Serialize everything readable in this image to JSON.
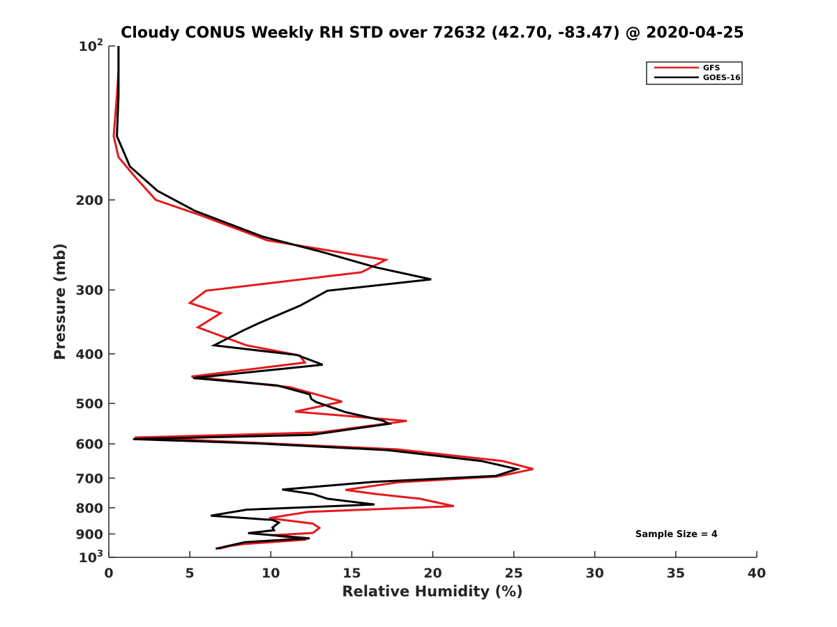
{
  "chart_data": {
    "type": "line",
    "title": "Cloudy CONUS Weekly RH STD over 72632 (42.70, -83.47) @ 2020-04-25",
    "xlabel": "Relative Humidity (%)",
    "ylabel": "Pressure (mb)",
    "xlim": [
      0,
      40
    ],
    "ylim": [
      100,
      1000
    ],
    "y_scale": "log",
    "y_reversed": true,
    "grid": false,
    "legend_position": "top-right",
    "x_ticks": [
      {
        "value": 0,
        "label": "0"
      },
      {
        "value": 5,
        "label": "5"
      },
      {
        "value": 10,
        "label": "10"
      },
      {
        "value": 15,
        "label": "15"
      },
      {
        "value": 20,
        "label": "20"
      },
      {
        "value": 25,
        "label": "25"
      },
      {
        "value": 30,
        "label": "30"
      },
      {
        "value": 35,
        "label": "35"
      },
      {
        "value": 40,
        "label": "40"
      }
    ],
    "y_ticks": [
      {
        "value": 100,
        "base": "10",
        "exp": "2"
      },
      {
        "value": 200,
        "label": "200"
      },
      {
        "value": 300,
        "label": "300"
      },
      {
        "value": 400,
        "label": "400"
      },
      {
        "value": 500,
        "label": "500"
      },
      {
        "value": 600,
        "label": "600"
      },
      {
        "value": 700,
        "label": "700"
      },
      {
        "value": 800,
        "label": "800"
      },
      {
        "value": 900,
        "label": "900"
      },
      {
        "value": 1000,
        "base": "10",
        "exp": "3"
      }
    ],
    "series": [
      {
        "name": "GFS",
        "color": "#e31a1c",
        "points": [
          [
            0.6,
            100
          ],
          [
            0.6,
            112
          ],
          [
            0.5,
            125
          ],
          [
            0.3,
            150
          ],
          [
            0.6,
            165
          ],
          [
            1.6,
            180
          ],
          [
            2.9,
            200
          ],
          [
            5.6,
            214
          ],
          [
            9.8,
            240
          ],
          [
            17.1,
            262
          ],
          [
            15.6,
            277
          ],
          [
            6.0,
            301
          ],
          [
            5.0,
            318
          ],
          [
            6.9,
            333
          ],
          [
            5.5,
            355
          ],
          [
            8.5,
            385
          ],
          [
            11.8,
            403
          ],
          [
            12.1,
            416
          ],
          [
            5.1,
            443
          ],
          [
            11.2,
            465
          ],
          [
            12.7,
            479
          ],
          [
            14.4,
            496
          ],
          [
            11.5,
            519
          ],
          [
            18.4,
            541
          ],
          [
            13.0,
            570
          ],
          [
            1.6,
            583
          ],
          [
            8.0,
            595
          ],
          [
            17.8,
            615
          ],
          [
            24.3,
            648
          ],
          [
            26.2,
            672
          ],
          [
            24.0,
            695
          ],
          [
            17.9,
            713
          ],
          [
            14.6,
            738
          ],
          [
            16.5,
            752
          ],
          [
            19.2,
            768
          ],
          [
            21.3,
            794
          ],
          [
            12.3,
            815
          ],
          [
            9.9,
            838
          ],
          [
            12.6,
            859
          ],
          [
            13.0,
            876
          ],
          [
            12.6,
            896
          ],
          [
            10.1,
            905
          ],
          [
            12.2,
            923
          ],
          [
            8.3,
            942
          ],
          [
            7.5,
            950
          ],
          [
            6.8,
            962
          ]
        ]
      },
      {
        "name": "GOES-16",
        "color": "#000000",
        "points": [
          [
            0.6,
            100
          ],
          [
            0.6,
            112
          ],
          [
            0.6,
            125
          ],
          [
            0.5,
            150
          ],
          [
            1.3,
            172
          ],
          [
            3.0,
            192
          ],
          [
            5.3,
            210
          ],
          [
            9.5,
            236
          ],
          [
            13.2,
            253
          ],
          [
            16.5,
            271
          ],
          [
            19.9,
            286
          ],
          [
            13.5,
            301
          ],
          [
            11.8,
            322
          ],
          [
            9.3,
            348
          ],
          [
            8.3,
            360
          ],
          [
            6.5,
            385
          ],
          [
            11.6,
            402
          ],
          [
            13.2,
            420
          ],
          [
            5.2,
            446
          ],
          [
            10.4,
            461
          ],
          [
            12.4,
            480
          ],
          [
            12.5,
            490
          ],
          [
            12.8,
            497
          ],
          [
            14.6,
            520
          ],
          [
            16.9,
            540
          ],
          [
            17.3,
            548
          ],
          [
            12.5,
            576
          ],
          [
            1.5,
            587
          ],
          [
            9.3,
            599
          ],
          [
            17.2,
            617
          ],
          [
            23.0,
            648
          ],
          [
            25.2,
            672
          ],
          [
            23.9,
            693
          ],
          [
            16.3,
            712
          ],
          [
            10.7,
            737
          ],
          [
            12.6,
            752
          ],
          [
            13.5,
            768
          ],
          [
            16.4,
            788
          ],
          [
            8.5,
            807
          ],
          [
            6.3,
            829
          ],
          [
            10.1,
            845
          ],
          [
            10.5,
            855
          ],
          [
            10.1,
            875
          ],
          [
            10.2,
            885
          ],
          [
            8.6,
            897
          ],
          [
            12.4,
            918
          ],
          [
            8.4,
            934
          ],
          [
            6.6,
            962
          ]
        ]
      }
    ],
    "annotation": "Sample Size = 4"
  }
}
